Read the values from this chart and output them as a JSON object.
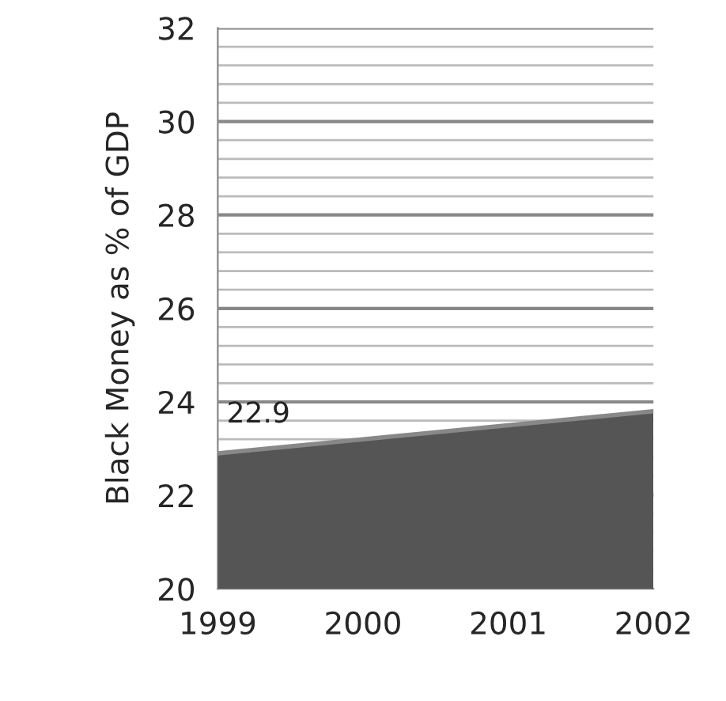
{
  "chart_data": {
    "type": "area",
    "ylabel": "Black Money as % of GDP",
    "categories": [
      "1999",
      "2000",
      "2001",
      "2002"
    ],
    "series": [
      {
        "color": "#555555",
        "values": [
          22.9,
          23.2,
          23.5,
          23.8
        ],
        "value_labels": [
          "22.9",
          null,
          null,
          null
        ]
      }
    ],
    "ylim": [
      20,
      32
    ],
    "yticks": [
      20,
      22,
      24,
      26,
      28,
      30,
      32
    ],
    "grid": "y"
  }
}
